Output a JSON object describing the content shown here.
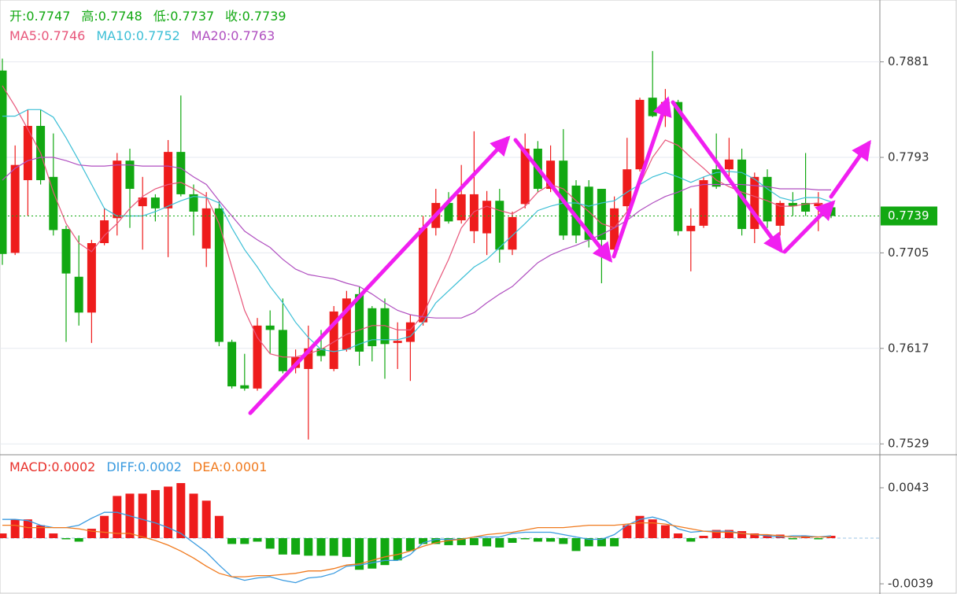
{
  "chart_data": [
    {
      "type": "candlestick",
      "ylim": [
        0.7519,
        0.7938
      ],
      "yticks": [
        0.7529,
        0.7617,
        0.7705,
        0.7793,
        0.7881
      ],
      "grid": true,
      "up_color": "#ee1c1c",
      "down_color": "#12a812",
      "ohlc_labels": [
        "开:",
        "高:",
        "低:",
        "收:"
      ],
      "open": [
        0.7873,
        0.7705,
        0.7772,
        0.7822,
        0.7775,
        0.7727,
        0.7683,
        0.765,
        0.7714,
        0.7737,
        0.779,
        0.7748,
        0.7756,
        0.7746,
        0.7798,
        0.7759,
        0.7709,
        0.7746,
        0.7623,
        0.7583,
        0.758,
        0.7638,
        0.7634,
        0.7599,
        0.7598,
        0.7617,
        0.7598,
        0.7616,
        0.7667,
        0.7654,
        0.7654,
        0.7622,
        0.7623,
        0.7641,
        0.7728,
        0.7751,
        0.7735,
        0.7725,
        0.7723,
        0.7753,
        0.7708,
        0.775,
        0.7801,
        0.7764,
        0.779,
        0.7767,
        0.7766,
        0.7764,
        0.7708,
        0.7748,
        0.7782,
        0.7848,
        0.7831,
        0.7844,
        0.7725,
        0.773,
        0.7782,
        0.7782,
        0.7791,
        0.7727,
        0.7775,
        0.773,
        0.7751,
        0.7751,
        0.7748,
        0.7747
      ],
      "high": [
        0.7884,
        0.7804,
        0.7837,
        0.7837,
        0.7815,
        0.773,
        0.7721,
        0.7717,
        0.7746,
        0.7797,
        0.7801,
        0.7775,
        0.7759,
        0.7809,
        0.785,
        0.7768,
        0.7761,
        0.7753,
        0.7625,
        0.7612,
        0.7645,
        0.7652,
        0.7663,
        0.7616,
        0.7638,
        0.7634,
        0.7656,
        0.767,
        0.7674,
        0.7656,
        0.7663,
        0.7641,
        0.7648,
        0.7739,
        0.7764,
        0.7761,
        0.7786,
        0.7817,
        0.7762,
        0.7764,
        0.7743,
        0.7815,
        0.7808,
        0.7804,
        0.7819,
        0.7772,
        0.7772,
        0.7764,
        0.7757,
        0.7811,
        0.7848,
        0.7891,
        0.7856,
        0.7846,
        0.7746,
        0.7775,
        0.7815,
        0.7811,
        0.7801,
        0.7779,
        0.7782,
        0.7753,
        0.7761,
        0.7797,
        0.7761,
        0.7748
      ],
      "low": [
        0.7694,
        0.7703,
        0.7739,
        0.7768,
        0.7721,
        0.7623,
        0.7638,
        0.7622,
        0.7712,
        0.7721,
        0.7728,
        0.7708,
        0.7734,
        0.7701,
        0.7757,
        0.7721,
        0.7692,
        0.7619,
        0.758,
        0.7578,
        0.7578,
        0.7612,
        0.7594,
        0.7594,
        0.7533,
        0.7605,
        0.7596,
        0.7614,
        0.7601,
        0.7605,
        0.7589,
        0.7598,
        0.7587,
        0.7638,
        0.7721,
        0.7732,
        0.7732,
        0.7714,
        0.7703,
        0.7696,
        0.7703,
        0.7746,
        0.7761,
        0.7761,
        0.7717,
        0.7714,
        0.771,
        0.7677,
        0.7703,
        0.7743,
        0.778,
        0.783,
        0.7821,
        0.7721,
        0.7688,
        0.7728,
        0.7764,
        0.7772,
        0.7721,
        0.7714,
        0.7728,
        0.7721,
        0.7739,
        0.7739,
        0.7725,
        0.7737
      ],
      "close": [
        0.7704,
        0.7786,
        0.7822,
        0.7772,
        0.7726,
        0.7686,
        0.765,
        0.7714,
        0.7735,
        0.779,
        0.7764,
        0.7756,
        0.7746,
        0.7798,
        0.7759,
        0.7743,
        0.7746,
        0.7623,
        0.7582,
        0.758,
        0.7638,
        0.7634,
        0.7596,
        0.7609,
        0.7617,
        0.761,
        0.7651,
        0.7663,
        0.7614,
        0.7619,
        0.7621,
        0.7624,
        0.7641,
        0.7728,
        0.7751,
        0.7734,
        0.7759,
        0.7759,
        0.7753,
        0.7708,
        0.7738,
        0.7801,
        0.7764,
        0.779,
        0.7721,
        0.7721,
        0.7717,
        0.7717,
        0.7746,
        0.7782,
        0.7846,
        0.7831,
        0.7844,
        0.7725,
        0.773,
        0.7772,
        0.7766,
        0.7791,
        0.7727,
        0.7775,
        0.7734,
        0.7751,
        0.7748,
        0.7743,
        0.7751,
        0.7739
      ],
      "series": [
        {
          "name": "MA5:",
          "color": "#e8557a",
          "values": [
            0.7859,
            0.784,
            0.7819,
            0.7797,
            0.7761,
            0.7732,
            0.7714,
            0.7706,
            0.7721,
            0.7732,
            0.7746,
            0.7757,
            0.7764,
            0.7768,
            0.777,
            0.7764,
            0.7757,
            0.7732,
            0.7692,
            0.7652,
            0.7627,
            0.7612,
            0.7609,
            0.7609,
            0.7612,
            0.7616,
            0.7623,
            0.763,
            0.7634,
            0.7638,
            0.7638,
            0.7634,
            0.7634,
            0.7648,
            0.7674,
            0.7699,
            0.7728,
            0.7743,
            0.7748,
            0.7744,
            0.7741,
            0.7748,
            0.7761,
            0.7768,
            0.7764,
            0.7753,
            0.7743,
            0.7732,
            0.7728,
            0.7743,
            0.7768,
            0.7793,
            0.7809,
            0.7804,
            0.7793,
            0.7783,
            0.7772,
            0.7766,
            0.7761,
            0.7757,
            0.7753,
            0.7748,
            0.7748,
            0.775,
            0.7751,
            0.7746
          ]
        },
        {
          "name": "MA10:",
          "color": "#3cbfd6",
          "values": [
            0.7831,
            0.7831,
            0.7837,
            0.7837,
            0.783,
            0.7811,
            0.779,
            0.7768,
            0.7746,
            0.7739,
            0.7739,
            0.7739,
            0.7743,
            0.7748,
            0.7753,
            0.7757,
            0.7756,
            0.7751,
            0.7728,
            0.7708,
            0.7692,
            0.7674,
            0.7659,
            0.7641,
            0.7627,
            0.7616,
            0.7614,
            0.7616,
            0.7621,
            0.7625,
            0.7625,
            0.7625,
            0.7628,
            0.7641,
            0.7659,
            0.767,
            0.7681,
            0.7692,
            0.7699,
            0.771,
            0.7721,
            0.7732,
            0.7744,
            0.7748,
            0.7751,
            0.7751,
            0.7748,
            0.7751,
            0.7753,
            0.7761,
            0.7768,
            0.7775,
            0.7779,
            0.7775,
            0.777,
            0.7775,
            0.7779,
            0.778,
            0.7779,
            0.7773,
            0.7764,
            0.7756,
            0.7753,
            0.7756,
            0.7756,
            0.7752
          ]
        },
        {
          "name": "MA20:",
          "color": "#b04fc0",
          "values": [
            0.7772,
            0.7783,
            0.779,
            0.7793,
            0.7793,
            0.779,
            0.7786,
            0.7785,
            0.7785,
            0.7786,
            0.7786,
            0.7785,
            0.7785,
            0.7785,
            0.7783,
            0.7775,
            0.7768,
            0.7753,
            0.7739,
            0.7725,
            0.7717,
            0.771,
            0.7699,
            0.769,
            0.7685,
            0.7683,
            0.7681,
            0.7677,
            0.7674,
            0.7667,
            0.7659,
            0.7652,
            0.7648,
            0.7646,
            0.7645,
            0.7645,
            0.7645,
            0.765,
            0.7659,
            0.7667,
            0.7674,
            0.7685,
            0.7696,
            0.7703,
            0.7708,
            0.7712,
            0.7717,
            0.7722,
            0.7728,
            0.7735,
            0.7744,
            0.7751,
            0.7757,
            0.7761,
            0.7766,
            0.7768,
            0.7768,
            0.7768,
            0.7768,
            0.7767,
            0.7766,
            0.7764,
            0.7764,
            0.7764,
            0.7763,
            0.7763
          ]
        }
      ]
    },
    {
      "type": "macd",
      "ylim": [
        -0.00477,
        0.00712
      ],
      "yticks": [
        -0.0039,
        0.0043
      ],
      "histogram": {
        "name": "MACD:",
        "color": "#e8302a",
        "up_color": "#ee1c1c",
        "down_color": "#12a812",
        "values": [
          0.0004,
          0.0016,
          0.0016,
          0.0011,
          0.0004,
          -0.0001,
          -0.0003,
          0.0008,
          0.0019,
          0.0036,
          0.0038,
          0.0038,
          0.0041,
          0.0044,
          0.0047,
          0.0038,
          0.0032,
          0.0019,
          -0.0005,
          -0.0005,
          -0.0003,
          -0.0009,
          -0.0014,
          -0.0014,
          -0.0015,
          -0.0015,
          -0.0015,
          -0.0016,
          -0.0027,
          -0.0026,
          -0.0023,
          -0.0019,
          -0.0011,
          -0.0005,
          -0.0005,
          -0.0006,
          -0.0006,
          -0.0006,
          -0.0007,
          -0.0008,
          -0.0004,
          -0.0001,
          -0.0003,
          -0.0003,
          -0.0005,
          -0.0011,
          -0.0007,
          -0.0007,
          -0.0007,
          0.0011,
          0.0019,
          0.0016,
          0.0011,
          0.0004,
          -0.0003,
          0.0002,
          0.0007,
          0.0007,
          0.0006,
          0.0004,
          0.0003,
          0.0003,
          -0.0001,
          0.0002,
          -0.0001,
          0.0002
        ]
      },
      "series": [
        {
          "name": "DIFF:",
          "color": "#3a9be0",
          "values": [
            0.0016,
            0.0016,
            0.0015,
            0.0011,
            0.0009,
            0.0009,
            0.0011,
            0.0017,
            0.0022,
            0.0022,
            0.0019,
            0.0016,
            0.0013,
            0.0009,
            0.0004,
            -0.0004,
            -0.0012,
            -0.0023,
            -0.0033,
            -0.0036,
            -0.0034,
            -0.0033,
            -0.0036,
            -0.0038,
            -0.0034,
            -0.0033,
            -0.003,
            -0.0024,
            -0.0023,
            -0.0021,
            -0.0019,
            -0.0019,
            -0.0014,
            -0.0004,
            -0.0001,
            -0.0001,
            -0.0001,
            0.0001,
            0.0001,
            0.0001,
            0.0004,
            0.0005,
            0.0005,
            0.0005,
            0.0003,
            0.0001,
            -0.0001,
            -0.0001,
            0.0003,
            0.0011,
            0.0016,
            0.0018,
            0.0015,
            0.0008,
            0.0005,
            0.0006,
            0.0006,
            0.0006,
            0.0004,
            0.0003,
            0.0002,
            0.0001,
            0.0002,
            0.0002,
            0.0001,
            0.0002
          ]
        },
        {
          "name": "DEA:",
          "color": "#f07a1e",
          "values": [
            0.0011,
            0.0011,
            0.0009,
            0.0009,
            0.0009,
            0.0009,
            0.0008,
            0.0006,
            0.0005,
            0.0004,
            0.0004,
            0.0001,
            -0.0002,
            -0.0006,
            -0.0011,
            -0.0017,
            -0.0024,
            -0.003,
            -0.0033,
            -0.0033,
            -0.0032,
            -0.0032,
            -0.0031,
            -0.003,
            -0.0028,
            -0.0028,
            -0.0026,
            -0.0023,
            -0.0022,
            -0.0019,
            -0.0016,
            -0.0014,
            -0.0011,
            -0.0007,
            -0.0004,
            -0.0002,
            -0.0001,
            0.0001,
            0.0003,
            0.0004,
            0.0005,
            0.0007,
            0.0009,
            0.0009,
            0.0009,
            0.001,
            0.0011,
            0.0011,
            0.0011,
            0.0012,
            0.0013,
            0.0013,
            0.0012,
            0.001,
            0.0008,
            0.0006,
            0.0005,
            0.0005,
            0.0004,
            0.0003,
            0.0003,
            0.0002,
            0.0001,
            0.0001,
            0.0001,
            0.0001
          ]
        }
      ]
    }
  ]
}
